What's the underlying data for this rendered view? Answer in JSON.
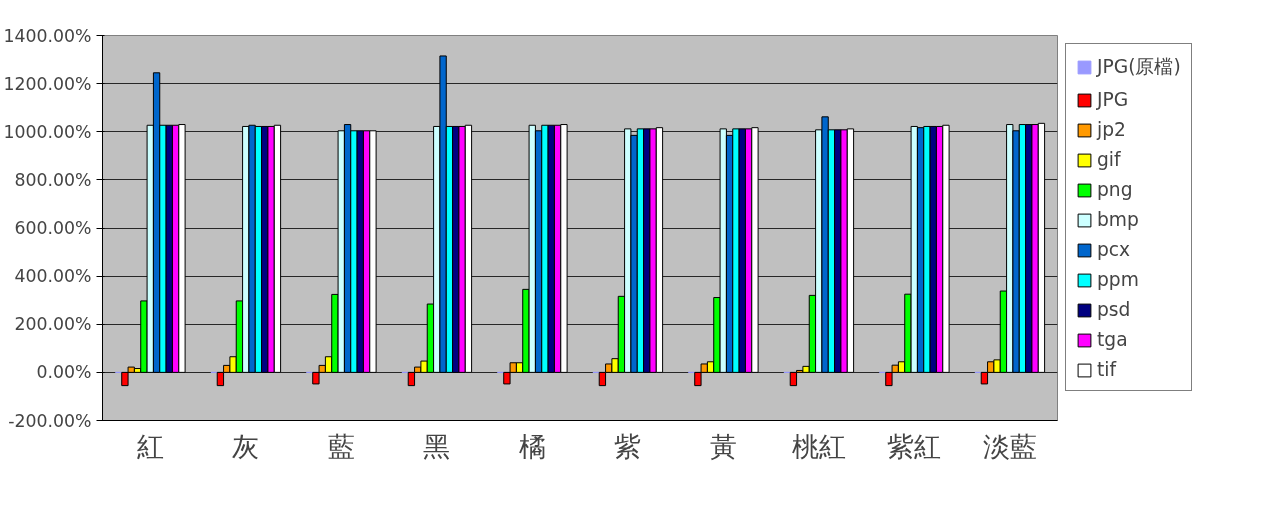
{
  "chart_data": {
    "type": "bar",
    "categories": [
      "紅",
      "灰",
      "藍",
      "黑",
      "橘",
      "紫",
      "黃",
      "桃紅",
      "紫紅",
      "淡藍"
    ],
    "series": [
      {
        "name": "JPG(原檔)",
        "color": "#9999ff",
        "values": [
          0,
          0,
          0,
          0,
          0,
          0,
          0,
          0,
          0,
          0
        ]
      },
      {
        "name": "JPG",
        "color": "#ff0000",
        "values": [
          -55,
          -55,
          -48,
          -55,
          -48,
          -55,
          -55,
          -55,
          -55,
          -48
        ]
      },
      {
        "name": "jp2",
        "color": "#ff9900",
        "values": [
          22,
          29,
          29,
          22,
          40,
          35,
          35,
          8,
          30,
          44
        ]
      },
      {
        "name": "gif",
        "color": "#ffff00",
        "values": [
          16,
          65,
          65,
          47,
          40,
          57,
          44,
          25,
          44,
          52
        ]
      },
      {
        "name": "png",
        "color": "#00ff00",
        "values": [
          297,
          297,
          324,
          284,
          345,
          316,
          311,
          320,
          325,
          338
        ]
      },
      {
        "name": "bmp",
        "color": "#ccffff",
        "values": [
          1027,
          1022,
          1004,
          1022,
          1027,
          1012,
          1012,
          1008,
          1022,
          1030
        ]
      },
      {
        "name": "pcx",
        "color": "#0066cc",
        "values": [
          1245,
          1027,
          1030,
          1315,
          1004,
          985,
          985,
          1062,
          1017,
          1004
        ]
      },
      {
        "name": "ppm",
        "color": "#00ffff",
        "values": [
          1027,
          1022,
          1004,
          1022,
          1027,
          1012,
          1012,
          1008,
          1022,
          1030
        ]
      },
      {
        "name": "psd",
        "color": "#000080",
        "values": [
          1027,
          1022,
          1004,
          1022,
          1027,
          1012,
          1012,
          1008,
          1022,
          1030
        ]
      },
      {
        "name": "tga",
        "color": "#ff00ff",
        "values": [
          1027,
          1022,
          1004,
          1022,
          1027,
          1012,
          1012,
          1008,
          1022,
          1030
        ]
      },
      {
        "name": "tif",
        "color": "#ffffff",
        "values": [
          1030,
          1027,
          1004,
          1027,
          1030,
          1017,
          1017,
          1012,
          1027,
          1035
        ]
      }
    ],
    "ylim": [
      -200,
      1400
    ],
    "yticks": [
      {
        "value": -200,
        "label": "-200.00%"
      },
      {
        "value": 0,
        "label": "0.00%"
      },
      {
        "value": 200,
        "label": "200.00%"
      },
      {
        "value": 400,
        "label": "400.00%"
      },
      {
        "value": 600,
        "label": "600.00%"
      },
      {
        "value": 800,
        "label": "800.00%"
      },
      {
        "value": 1000,
        "label": "1000.00%"
      },
      {
        "value": 1200,
        "label": "1200.00%"
      },
      {
        "value": 1400,
        "label": "1400.00%"
      }
    ],
    "grid": "y",
    "legend": "right"
  }
}
